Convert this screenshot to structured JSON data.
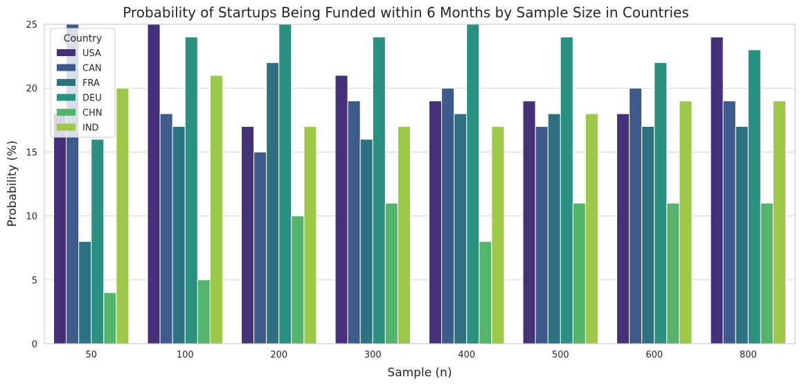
{
  "chart_data": {
    "type": "bar",
    "title": "Probability of Startups Being Funded within 6 Months by Sample Size in Countries",
    "xlabel": "Sample (n)",
    "ylabel": "Probability (%)",
    "categories": [
      "50",
      "100",
      "200",
      "300",
      "400",
      "500",
      "600",
      "800"
    ],
    "ylim": [
      0,
      25
    ],
    "yticks": [
      "0",
      "5",
      "10",
      "15",
      "20",
      "25"
    ],
    "grid": true,
    "legend": {
      "title": "Country",
      "placement": "top-left"
    },
    "series": [
      {
        "name": "USA",
        "color": "#45307a",
        "values": [
          18,
          25,
          17,
          21,
          19,
          19,
          18,
          24
        ]
      },
      {
        "name": "CAN",
        "color": "#3d5a8a",
        "values": [
          25,
          18,
          15,
          19,
          20,
          17,
          20,
          19
        ]
      },
      {
        "name": "FRA",
        "color": "#2e7282",
        "values": [
          8,
          17,
          22,
          16,
          18,
          18,
          17,
          17
        ]
      },
      {
        "name": "DEU",
        "color": "#2a9080",
        "values": [
          16,
          24,
          25,
          24,
          25,
          24,
          22,
          23
        ]
      },
      {
        "name": "CHN",
        "color": "#55b46c",
        "values": [
          4,
          5,
          10,
          11,
          8,
          11,
          11,
          11
        ]
      },
      {
        "name": "IND",
        "color": "#9ec84a",
        "values": [
          20,
          21,
          17,
          17,
          17,
          18,
          19,
          19
        ]
      }
    ]
  }
}
